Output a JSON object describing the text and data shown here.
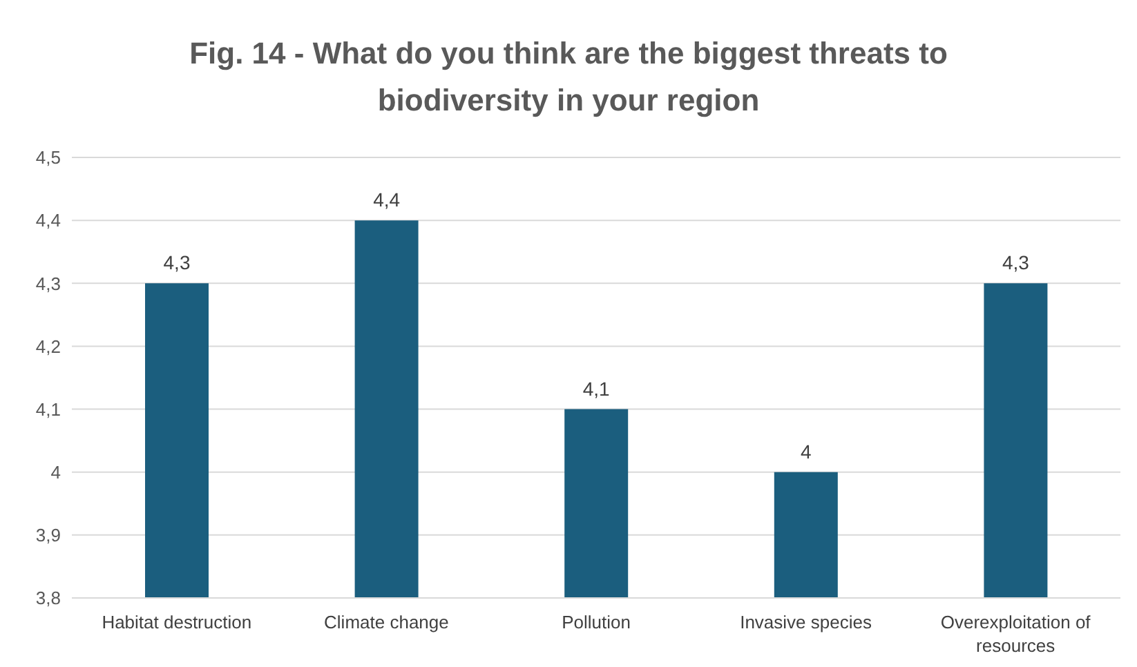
{
  "chart_data": {
    "type": "bar",
    "title": "Fig. 14 - What do you think are the biggest threats to biodiversity in your region",
    "categories": [
      "Habitat destruction",
      "Climate change",
      "Pollution",
      "Invasive species",
      "Overexploitation of resources"
    ],
    "values": [
      4.3,
      4.4,
      4.1,
      4.0,
      4.3
    ],
    "value_labels": [
      "4,3",
      "4,4",
      "4,1",
      "4",
      "4,3"
    ],
    "color": "#1b5e7e",
    "ylim": [
      3.8,
      4.5
    ],
    "yticks": [
      {
        "value": 3.8,
        "label": "3,8"
      },
      {
        "value": 3.9,
        "label": "3,9"
      },
      4,
      {
        "value": 4.1,
        "label": "4,1"
      },
      {
        "value": 4.2,
        "label": "4,2"
      },
      {
        "value": 4.3,
        "label": "4,3"
      },
      {
        "value": 4.4,
        "label": "4,4"
      },
      {
        "value": 4.5,
        "label": "4,5"
      }
    ],
    "grid": "y",
    "legend": false
  }
}
